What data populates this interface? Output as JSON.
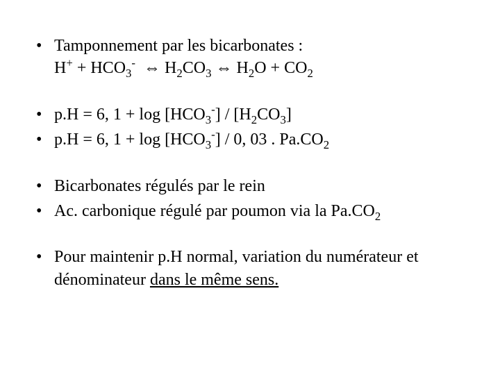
{
  "slide": {
    "background_color": "#ffffff",
    "text_color": "#000000",
    "font_family": "Times New Roman",
    "font_size_pt": 18,
    "bullets": [
      {
        "lines": [
          {
            "text_html": "Tamponnement par les bicarbonates :"
          },
          {
            "text_html": "H<sup>+</sup> + HCO<sub>3</sub><sup>-</sup>  ⇔ H<sub>2</sub>CO<sub>3</sub> ⇔ H<sub>2</sub>O + CO<sub>2</sub>"
          }
        ]
      },
      {
        "lines": [
          {
            "text_html": "p.H = 6, 1 + log [HCO<sub>3</sub><sup>-</sup>] / [H<sub>2</sub>CO<sub>3</sub>]"
          }
        ]
      },
      {
        "lines": [
          {
            "text_html": "p.H = 6, 1 + log [HCO<sub>3</sub><sup>-</sup>] / 0, 03 . Pa.CO<sub>2</sub>"
          }
        ]
      },
      {
        "lines": [
          {
            "text_html": "Bicarbonates régulés par le rein"
          }
        ]
      },
      {
        "lines": [
          {
            "text_html": "Ac. carbonique régulé par poumon via la Pa.CO<sub>2</sub>"
          }
        ]
      },
      {
        "lines": [
          {
            "text_html": "Pour maintenir p.H normal, variation du numérateur et dénominateur <u>dans le même sens.</u>"
          }
        ]
      }
    ]
  }
}
